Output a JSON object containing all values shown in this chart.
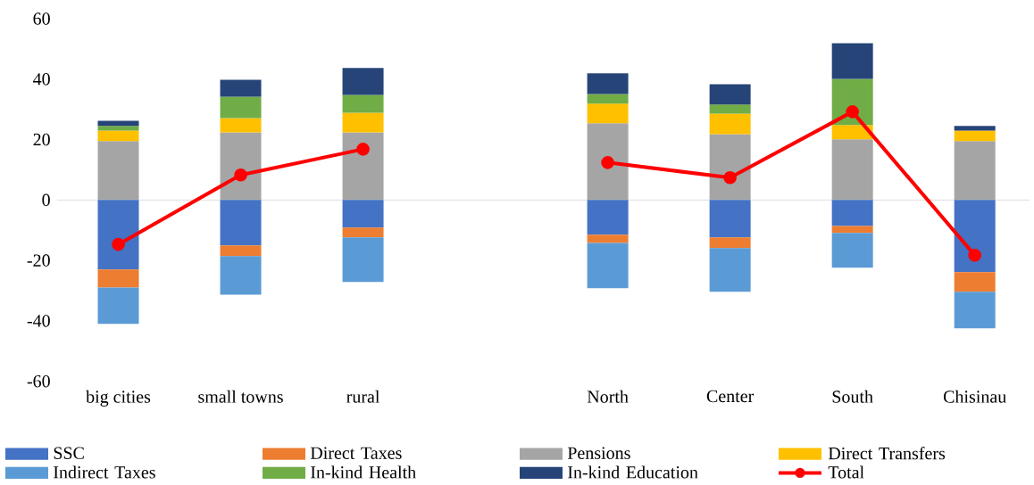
{
  "chart_data": {
    "type": "bar",
    "stacked": true,
    "categories": [
      "big cities",
      "small towns",
      "rural",
      null,
      "North",
      "Center",
      "South",
      "Chisinau"
    ],
    "series": [
      {
        "name": "SSC",
        "color": "#4472c4",
        "values": [
          -23.0,
          -15.0,
          -9.1,
          null,
          -11.5,
          -12.4,
          -8.6,
          -23.9
        ]
      },
      {
        "name": "Direct Taxes",
        "color": "#ed7d31",
        "values": [
          -6.0,
          -3.6,
          -3.3,
          null,
          -2.7,
          -3.5,
          -2.3,
          -6.5
        ]
      },
      {
        "name": "Pensions",
        "color": "#a5a5a5",
        "values": [
          19.5,
          22.4,
          22.4,
          null,
          25.4,
          21.8,
          20.1,
          19.5
        ]
      },
      {
        "name": "Direct Transfers",
        "color": "#ffc000",
        "values": [
          3.5,
          4.7,
          6.5,
          null,
          6.5,
          6.8,
          4.7,
          3.5
        ]
      },
      {
        "name": "Indirect Taxes",
        "color": "#5b9bd5",
        "values": [
          -12.0,
          -12.7,
          -14.7,
          null,
          -15.0,
          -14.5,
          -11.5,
          -12.1
        ]
      },
      {
        "name": "In-kind Health",
        "color": "#70ad47",
        "values": [
          1.5,
          7.1,
          5.9,
          null,
          3.2,
          3.0,
          15.3,
          0
        ]
      },
      {
        "name": "In-kind Education",
        "color": "#264478",
        "values": [
          1.7,
          5.6,
          8.9,
          null,
          6.8,
          6.7,
          11.8,
          1.5
        ]
      },
      {
        "name": "Total",
        "type": "line",
        "color": "#ff0000",
        "marker": "circle",
        "values": [
          -14.7,
          8.3,
          16.8,
          null,
          12.4,
          7.4,
          29.2,
          -18.3
        ]
      }
    ],
    "ylim": [
      -60,
      60
    ],
    "yticks": [
      -60,
      -40,
      -20,
      0,
      20,
      40,
      60
    ],
    "ref_lines": [
      {
        "axis": "y",
        "value": 0,
        "color": "#d9d9d9"
      }
    ],
    "grid": false,
    "legend": "bottom"
  }
}
